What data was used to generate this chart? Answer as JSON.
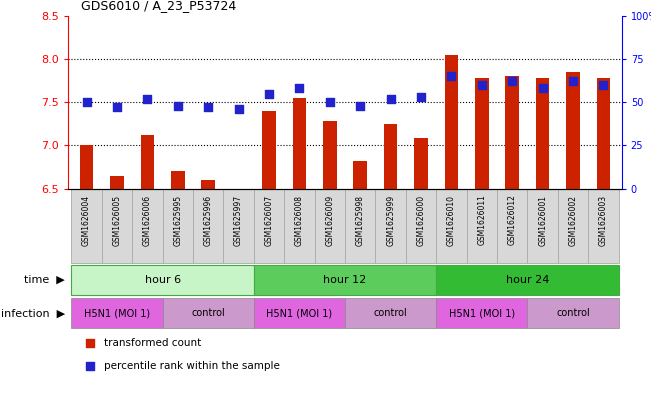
{
  "title": "GDS6010 / A_23_P53724",
  "samples": [
    "GSM1626004",
    "GSM1626005",
    "GSM1626006",
    "GSM1625995",
    "GSM1625996",
    "GSM1625997",
    "GSM1626007",
    "GSM1626008",
    "GSM1626009",
    "GSM1625998",
    "GSM1625999",
    "GSM1626000",
    "GSM1626010",
    "GSM1626011",
    "GSM1626012",
    "GSM1626001",
    "GSM1626002",
    "GSM1626003"
  ],
  "red_values": [
    7.0,
    6.65,
    7.12,
    6.7,
    6.6,
    6.5,
    7.4,
    7.55,
    7.28,
    6.82,
    7.25,
    7.08,
    8.05,
    7.78,
    7.8,
    7.78,
    7.85,
    7.78
  ],
  "blue_values": [
    50,
    47,
    52,
    48,
    47,
    46,
    55,
    58,
    50,
    48,
    52,
    53,
    65,
    60,
    62,
    58,
    62,
    60
  ],
  "ylim_left": [
    6.5,
    8.5
  ],
  "ylim_right": [
    0,
    100
  ],
  "yticks_left": [
    6.5,
    7.0,
    7.5,
    8.0,
    8.5
  ],
  "yticks_right": [
    0,
    25,
    50,
    75,
    100
  ],
  "ytick_labels_right": [
    "0",
    "25",
    "50",
    "75",
    "100%"
  ],
  "hlines": [
    7.0,
    7.5,
    8.0
  ],
  "time_groups": [
    {
      "label": "hour 6",
      "start": 0,
      "end": 6,
      "color": "#c8f5c8"
    },
    {
      "label": "hour 12",
      "start": 6,
      "end": 12,
      "color": "#5ccc5c"
    },
    {
      "label": "hour 24",
      "start": 12,
      "end": 18,
      "color": "#33bb33"
    }
  ],
  "infection_groups": [
    {
      "label": "H5N1 (MOI 1)",
      "start": 0,
      "end": 3,
      "color": "#e066e0"
    },
    {
      "label": "control",
      "start": 3,
      "end": 6,
      "color": "#cc99cc"
    },
    {
      "label": "H5N1 (MOI 1)",
      "start": 6,
      "end": 9,
      "color": "#e066e0"
    },
    {
      "label": "control",
      "start": 9,
      "end": 12,
      "color": "#cc99cc"
    },
    {
      "label": "H5N1 (MOI 1)",
      "start": 12,
      "end": 15,
      "color": "#e066e0"
    },
    {
      "label": "control",
      "start": 15,
      "end": 18,
      "color": "#cc99cc"
    }
  ],
  "bar_color": "#cc2200",
  "dot_color": "#2222cc",
  "bar_width": 0.45,
  "dot_size": 28,
  "legend_items": [
    {
      "label": "transformed count",
      "color": "#cc2200",
      "marker": "s"
    },
    {
      "label": "percentile rank within the sample",
      "color": "#2222cc",
      "marker": "s"
    }
  ],
  "sample_box_color": "#d8d8d8",
  "sample_box_edge": "#aaaaaa"
}
